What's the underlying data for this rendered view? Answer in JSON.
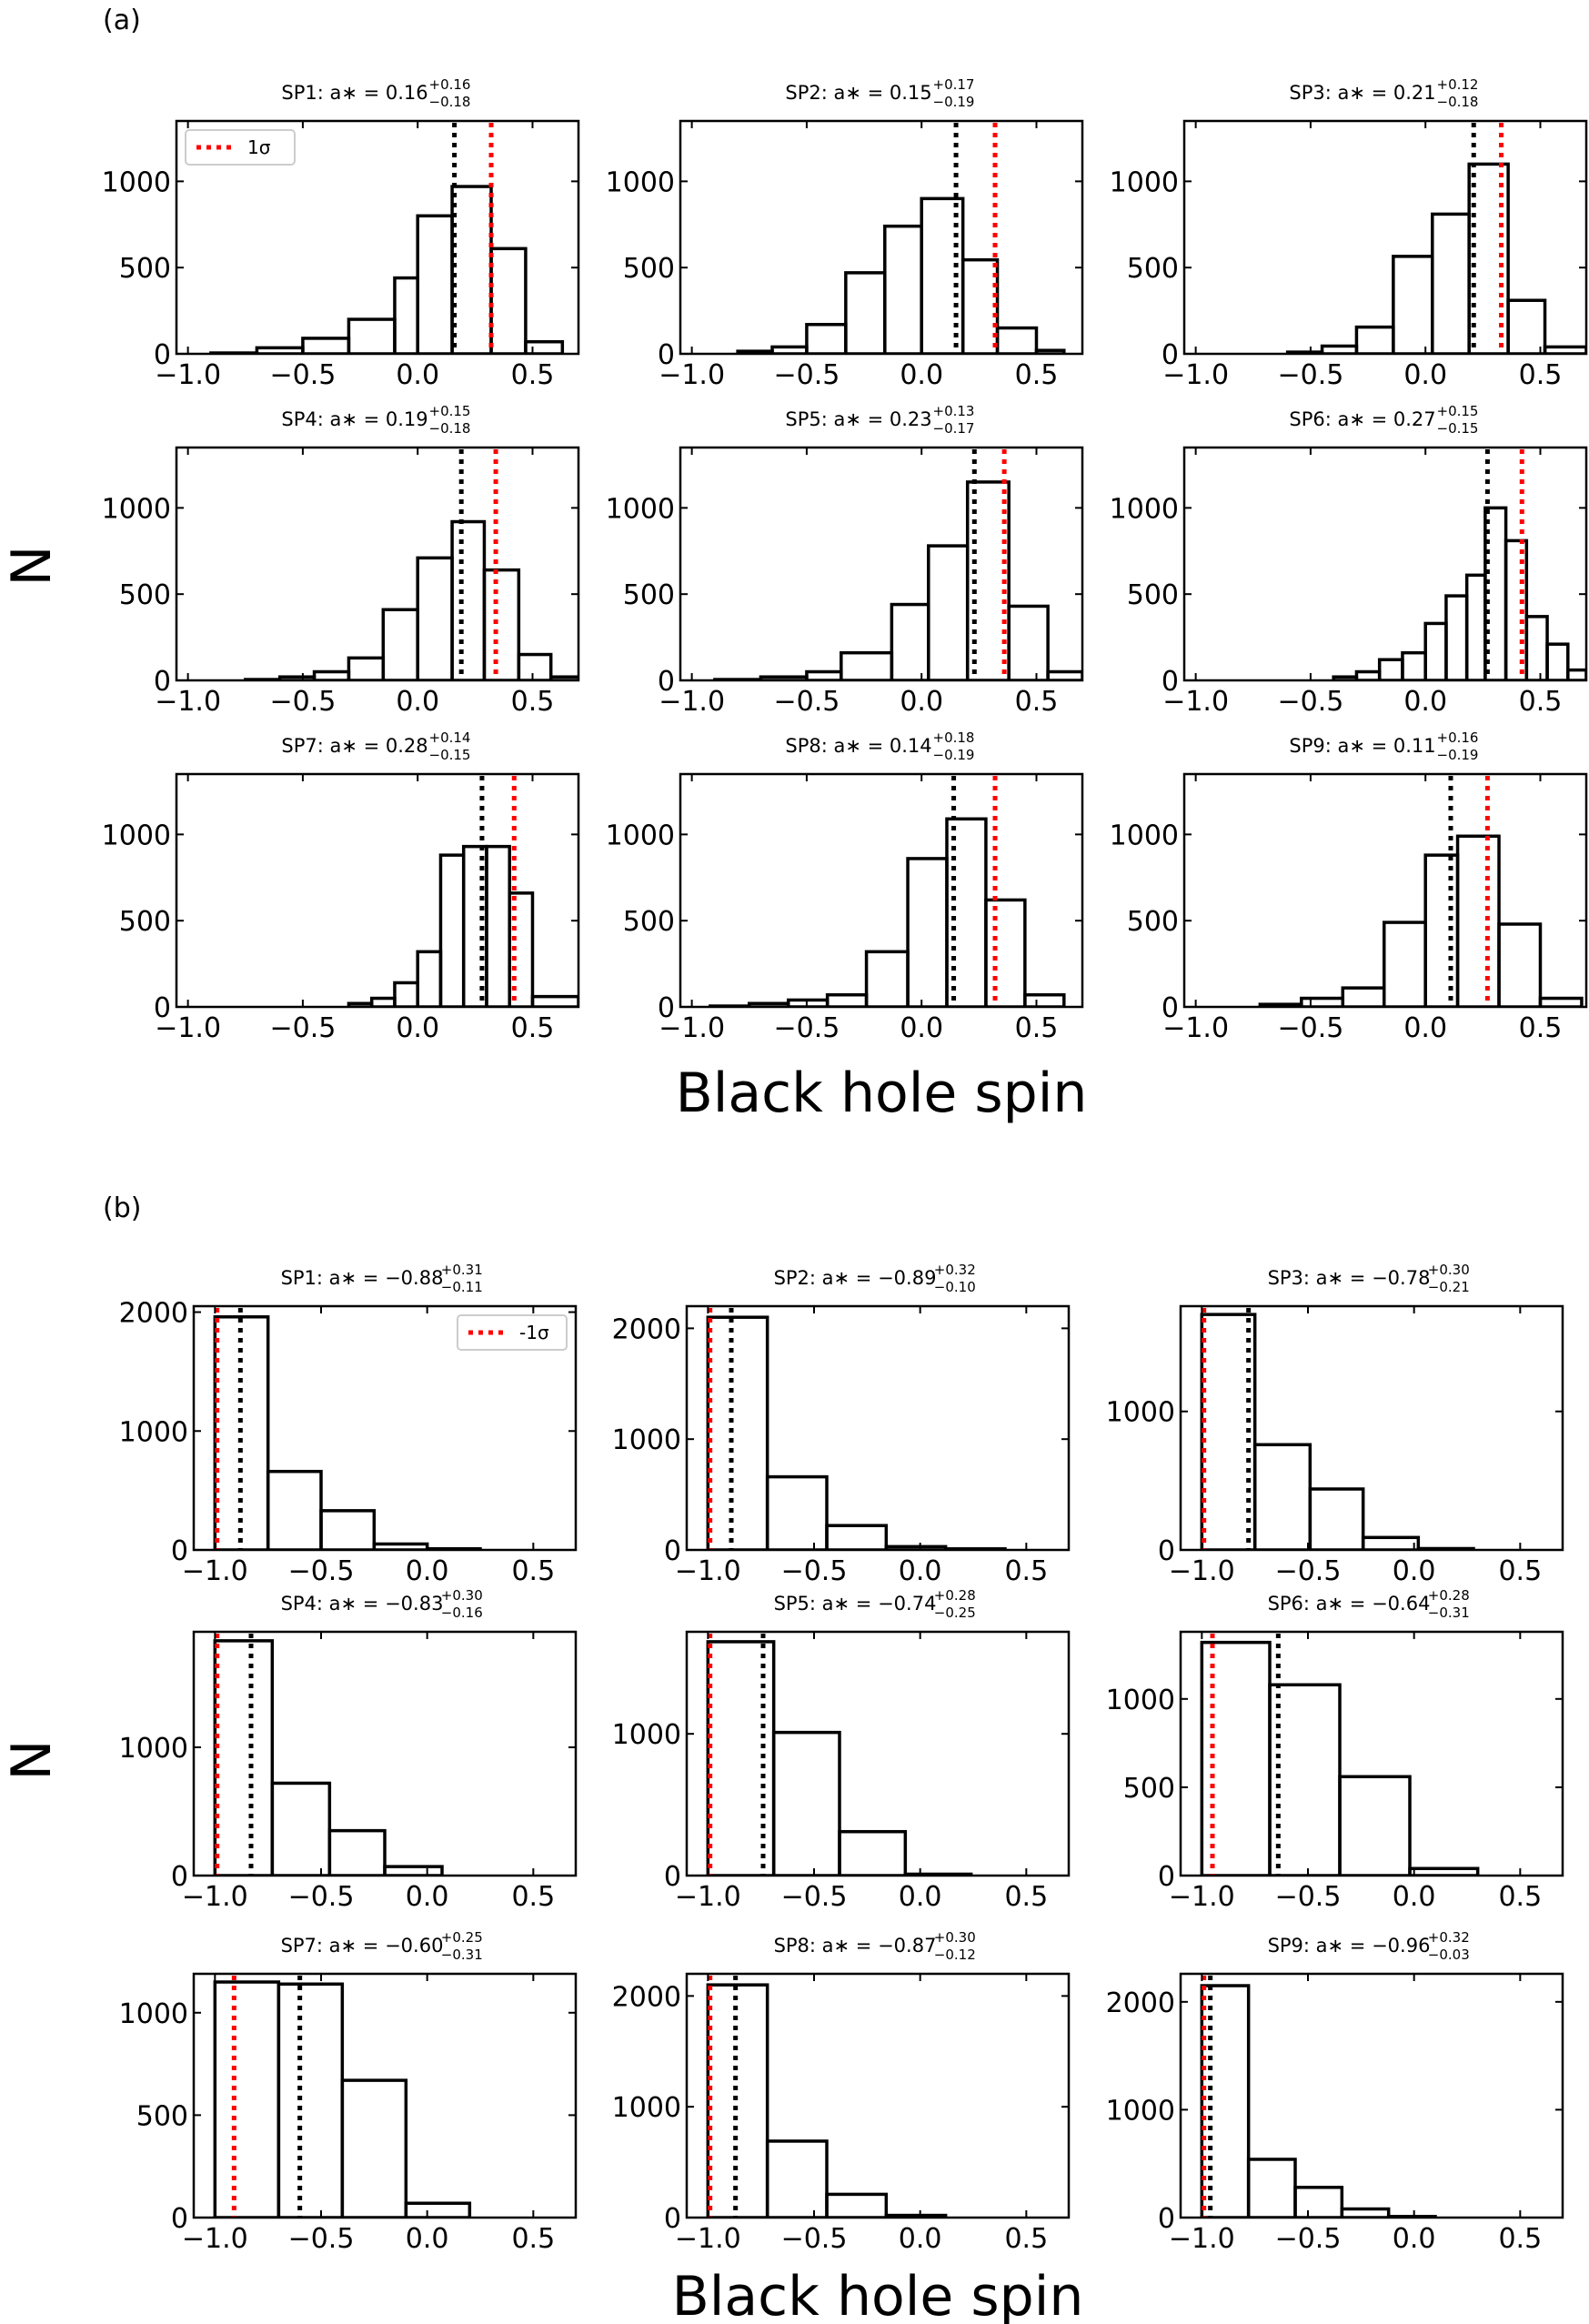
{
  "figure": {
    "panel_a_label": "(a)",
    "panel_b_label": "(b)",
    "xlabel": "Black hole spin",
    "ylabel": "N",
    "colors": {
      "median": "#000000",
      "sigma": "#ff0000",
      "bars": "#000000",
      "legend_border": "#cccccc"
    }
  },
  "chart_data": [
    {
      "panel": "(a)",
      "type": "bar",
      "xlim": [
        -1.05,
        0.7
      ],
      "ylim": [
        0,
        1350
      ],
      "xticks": [
        "−1.0",
        "−0.5",
        "0.0",
        "0.5"
      ],
      "legend": {
        "label": "1σ",
        "placement": "top-left",
        "in_subplot": "SP1"
      },
      "subplots": [
        {
          "name": "SP1",
          "title": "SP1:  a∗ = 0.16",
          "sup": "+0.16",
          "sub": "−0.18",
          "median": 0.16,
          "sigma_line": 0.32,
          "yticks": [
            0,
            500,
            1000
          ],
          "bins": [
            [
              -0.9,
              -0.7,
              5
            ],
            [
              -0.7,
              -0.5,
              35
            ],
            [
              -0.5,
              -0.3,
              90
            ],
            [
              -0.3,
              -0.1,
              200
            ],
            [
              -0.1,
              0.0,
              440
            ],
            [
              0.0,
              0.15,
              800
            ],
            [
              0.15,
              0.32,
              970
            ],
            [
              0.32,
              0.47,
              610
            ],
            [
              0.47,
              0.63,
              70
            ]
          ]
        },
        {
          "name": "SP2",
          "title": "SP2:  a∗ = 0.15",
          "sup": "+0.17",
          "sub": "−0.19",
          "median": 0.15,
          "sigma_line": 0.32,
          "yticks": [
            0,
            500,
            1000
          ],
          "bins": [
            [
              -0.8,
              -0.65,
              15
            ],
            [
              -0.65,
              -0.5,
              40
            ],
            [
              -0.5,
              -0.33,
              170
            ],
            [
              -0.33,
              -0.16,
              470
            ],
            [
              -0.16,
              0.0,
              740
            ],
            [
              0.0,
              0.18,
              900
            ],
            [
              0.18,
              0.33,
              545
            ],
            [
              0.33,
              0.5,
              150
            ],
            [
              0.5,
              0.62,
              20
            ]
          ]
        },
        {
          "name": "SP3",
          "title": "SP3:  a∗ = 0.21",
          "sup": "+0.12",
          "sub": "−0.18",
          "median": 0.21,
          "sigma_line": 0.33,
          "yticks": [
            0,
            500,
            1000
          ],
          "bins": [
            [
              -0.6,
              -0.45,
              10
            ],
            [
              -0.45,
              -0.3,
              45
            ],
            [
              -0.3,
              -0.14,
              155
            ],
            [
              -0.14,
              0.03,
              565
            ],
            [
              0.03,
              0.19,
              810
            ],
            [
              0.19,
              0.36,
              1100
            ],
            [
              0.36,
              0.52,
              310
            ],
            [
              0.52,
              0.7,
              40
            ]
          ]
        },
        {
          "name": "SP4",
          "title": "SP4:  a∗ = 0.19",
          "sup": "+0.15",
          "sub": "−0.18",
          "median": 0.19,
          "sigma_line": 0.34,
          "yticks": [
            0,
            500,
            1000
          ],
          "bins": [
            [
              -0.75,
              -0.6,
              5
            ],
            [
              -0.6,
              -0.45,
              20
            ],
            [
              -0.45,
              -0.3,
              50
            ],
            [
              -0.3,
              -0.15,
              130
            ],
            [
              -0.15,
              0.0,
              410
            ],
            [
              0.0,
              0.15,
              710
            ],
            [
              0.15,
              0.29,
              920
            ],
            [
              0.29,
              0.44,
              640
            ],
            [
              0.44,
              0.58,
              150
            ],
            [
              0.58,
              0.72,
              20
            ]
          ]
        },
        {
          "name": "SP5",
          "title": "SP5:  a∗ = 0.23",
          "sup": "+0.13",
          "sub": "−0.17",
          "median": 0.23,
          "sigma_line": 0.36,
          "yticks": [
            0,
            500,
            1000
          ],
          "bins": [
            [
              -0.9,
              -0.7,
              5
            ],
            [
              -0.7,
              -0.5,
              20
            ],
            [
              -0.5,
              -0.35,
              50
            ],
            [
              -0.35,
              -0.13,
              160
            ],
            [
              -0.13,
              0.03,
              440
            ],
            [
              0.03,
              0.2,
              780
            ],
            [
              0.2,
              0.38,
              1150
            ],
            [
              0.38,
              0.55,
              430
            ],
            [
              0.55,
              0.7,
              50
            ]
          ]
        },
        {
          "name": "SP6",
          "title": "SP6:  a∗ = 0.27",
          "sup": "+0.15",
          "sub": "−0.15",
          "median": 0.27,
          "sigma_line": 0.42,
          "yticks": [
            0,
            500,
            1000
          ],
          "bins": [
            [
              -0.4,
              -0.3,
              20
            ],
            [
              -0.3,
              -0.2,
              50
            ],
            [
              -0.2,
              -0.1,
              120
            ],
            [
              -0.1,
              0.0,
              160
            ],
            [
              0.0,
              0.09,
              330
            ],
            [
              0.09,
              0.18,
              490
            ],
            [
              0.18,
              0.26,
              610
            ],
            [
              0.26,
              0.35,
              1000
            ],
            [
              0.35,
              0.44,
              810
            ],
            [
              0.44,
              0.53,
              370
            ],
            [
              0.53,
              0.62,
              210
            ],
            [
              0.62,
              0.7,
              60
            ]
          ]
        },
        {
          "name": "SP7",
          "title": "SP7:  a∗ = 0.28",
          "sup": "+0.14",
          "sub": "−0.15",
          "median": 0.28,
          "sigma_line": 0.42,
          "yticks": [
            0,
            500,
            1000
          ],
          "bins": [
            [
              -0.3,
              -0.2,
              20
            ],
            [
              -0.2,
              -0.1,
              50
            ],
            [
              -0.1,
              0.0,
              140
            ],
            [
              0.0,
              0.1,
              320
            ],
            [
              0.1,
              0.2,
              880
            ],
            [
              0.2,
              0.3,
              930
            ],
            [
              0.3,
              0.4,
              930
            ],
            [
              0.4,
              0.5,
              660
            ],
            [
              0.5,
              0.7,
              60
            ]
          ]
        },
        {
          "name": "SP8",
          "title": "SP8:  a∗ = 0.14",
          "sup": "+0.18",
          "sub": "−0.19",
          "median": 0.14,
          "sigma_line": 0.32,
          "yticks": [
            0,
            500,
            1000
          ],
          "bins": [
            [
              -0.92,
              -0.75,
              5
            ],
            [
              -0.75,
              -0.58,
              20
            ],
            [
              -0.58,
              -0.41,
              40
            ],
            [
              -0.41,
              -0.24,
              70
            ],
            [
              -0.24,
              -0.06,
              320
            ],
            [
              -0.06,
              0.11,
              860
            ],
            [
              0.11,
              0.28,
              1090
            ],
            [
              0.28,
              0.45,
              620
            ],
            [
              0.45,
              0.62,
              70
            ]
          ]
        },
        {
          "name": "SP9",
          "title": "SP9:  a∗ = 0.11",
          "sup": "+0.16",
          "sub": "−0.19",
          "median": 0.11,
          "sigma_line": 0.27,
          "yticks": [
            0,
            500,
            1000
          ],
          "bins": [
            [
              -0.72,
              -0.54,
              15
            ],
            [
              -0.54,
              -0.36,
              50
            ],
            [
              -0.36,
              -0.18,
              110
            ],
            [
              -0.18,
              0.0,
              490
            ],
            [
              0.0,
              0.14,
              880
            ],
            [
              0.14,
              0.32,
              990
            ],
            [
              0.32,
              0.5,
              480
            ],
            [
              0.5,
              0.68,
              50
            ]
          ]
        }
      ]
    },
    {
      "panel": "(b)",
      "type": "bar",
      "xlim": [
        -1.1,
        0.7
      ],
      "xticks": [
        "−1.0",
        "−0.5",
        "0.0",
        "0.5"
      ],
      "legend": {
        "label": "-1σ",
        "placement": "top-right",
        "in_subplot": "SP1"
      },
      "subplots": [
        {
          "name": "SP1",
          "title": "SP1:  a∗ = −0.88",
          "sup": "+0.31",
          "sub": "−0.11",
          "median": -0.88,
          "sigma_line": -0.99,
          "ylim": [
            0,
            2050
          ],
          "yticks": [
            0,
            1000,
            2000
          ],
          "bins": [
            [
              -1.0,
              -0.75,
              1960
            ],
            [
              -0.75,
              -0.5,
              660
            ],
            [
              -0.5,
              -0.25,
              330
            ],
            [
              -0.25,
              0.0,
              50
            ],
            [
              0.0,
              0.25,
              10
            ]
          ]
        },
        {
          "name": "SP2",
          "title": "SP2:  a∗ = −0.89",
          "sup": "+0.32",
          "sub": "−0.10",
          "median": -0.89,
          "sigma_line": -0.99,
          "ylim": [
            0,
            2200
          ],
          "yticks": [
            0,
            1000,
            2000
          ],
          "bins": [
            [
              -1.0,
              -0.72,
              2100
            ],
            [
              -0.72,
              -0.44,
              660
            ],
            [
              -0.44,
              -0.16,
              220
            ],
            [
              -0.16,
              0.12,
              30
            ],
            [
              0.12,
              0.4,
              10
            ]
          ]
        },
        {
          "name": "SP3",
          "title": "SP3:  a∗ = −0.78",
          "sup": "+0.30",
          "sub": "−0.21",
          "median": -0.78,
          "sigma_line": -0.99,
          "ylim": [
            0,
            1760
          ],
          "yticks": [
            0,
            1000
          ],
          "bins": [
            [
              -1.0,
              -0.75,
              1700
            ],
            [
              -0.75,
              -0.49,
              760
            ],
            [
              -0.49,
              -0.24,
              440
            ],
            [
              -0.24,
              0.02,
              90
            ],
            [
              0.02,
              0.28,
              10
            ]
          ]
        },
        {
          "name": "SP4",
          "title": "SP4:  a∗ = −0.83",
          "sup": "+0.30",
          "sub": "−0.16",
          "median": -0.83,
          "sigma_line": -0.99,
          "ylim": [
            0,
            1900
          ],
          "yticks": [
            0,
            1000
          ],
          "bins": [
            [
              -1.0,
              -0.73,
              1830
            ],
            [
              -0.73,
              -0.46,
              720
            ],
            [
              -0.46,
              -0.2,
              350
            ],
            [
              -0.2,
              0.07,
              70
            ]
          ]
        },
        {
          "name": "SP5",
          "title": "SP5:  a∗ = −0.74",
          "sup": "+0.28",
          "sub": "−0.25",
          "median": -0.74,
          "sigma_line": -0.99,
          "ylim": [
            0,
            1720
          ],
          "yticks": [
            0,
            1000
          ],
          "bins": [
            [
              -1.0,
              -0.69,
              1650
            ],
            [
              -0.69,
              -0.38,
              1010
            ],
            [
              -0.38,
              -0.07,
              310
            ],
            [
              -0.07,
              0.24,
              10
            ]
          ]
        },
        {
          "name": "SP6",
          "title": "SP6:  a∗ = −0.64",
          "sup": "+0.28",
          "sub": "−0.31",
          "median": -0.64,
          "sigma_line": -0.95,
          "ylim": [
            0,
            1380
          ],
          "yticks": [
            0,
            500,
            1000
          ],
          "bins": [
            [
              -1.0,
              -0.68,
              1320
            ],
            [
              -0.68,
              -0.35,
              1080
            ],
            [
              -0.35,
              -0.02,
              560
            ],
            [
              -0.02,
              0.3,
              40
            ]
          ]
        },
        {
          "name": "SP7",
          "title": "SP7:  a∗ = −0.60",
          "sup": "+0.25",
          "sub": "−0.31",
          "median": -0.6,
          "sigma_line": -0.91,
          "ylim": [
            0,
            1190
          ],
          "yticks": [
            0,
            500,
            1000
          ],
          "bins": [
            [
              -1.0,
              -0.7,
              1150
            ],
            [
              -0.7,
              -0.4,
              1140
            ],
            [
              -0.4,
              -0.1,
              670
            ],
            [
              -0.1,
              0.2,
              70
            ]
          ]
        },
        {
          "name": "SP8",
          "title": "SP8:  a∗ = −0.87",
          "sup": "+0.30",
          "sub": "−0.12",
          "median": -0.87,
          "sigma_line": -0.99,
          "ylim": [
            0,
            2200
          ],
          "yticks": [
            0,
            1000,
            2000
          ],
          "bins": [
            [
              -1.0,
              -0.72,
              2100
            ],
            [
              -0.72,
              -0.44,
              690
            ],
            [
              -0.44,
              -0.16,
              210
            ],
            [
              -0.16,
              0.12,
              20
            ]
          ]
        },
        {
          "name": "SP9",
          "title": "SP9:  a∗ = −0.96",
          "sup": "+0.32",
          "sub": "−0.03",
          "median": -0.96,
          "sigma_line": -0.99,
          "ylim": [
            0,
            2260
          ],
          "yticks": [
            0,
            1000,
            2000
          ],
          "bins": [
            [
              -1.0,
              -0.78,
              2150
            ],
            [
              -0.78,
              -0.56,
              540
            ],
            [
              -0.56,
              -0.34,
              280
            ],
            [
              -0.34,
              -0.12,
              80
            ],
            [
              -0.12,
              0.1,
              10
            ]
          ]
        }
      ]
    }
  ]
}
